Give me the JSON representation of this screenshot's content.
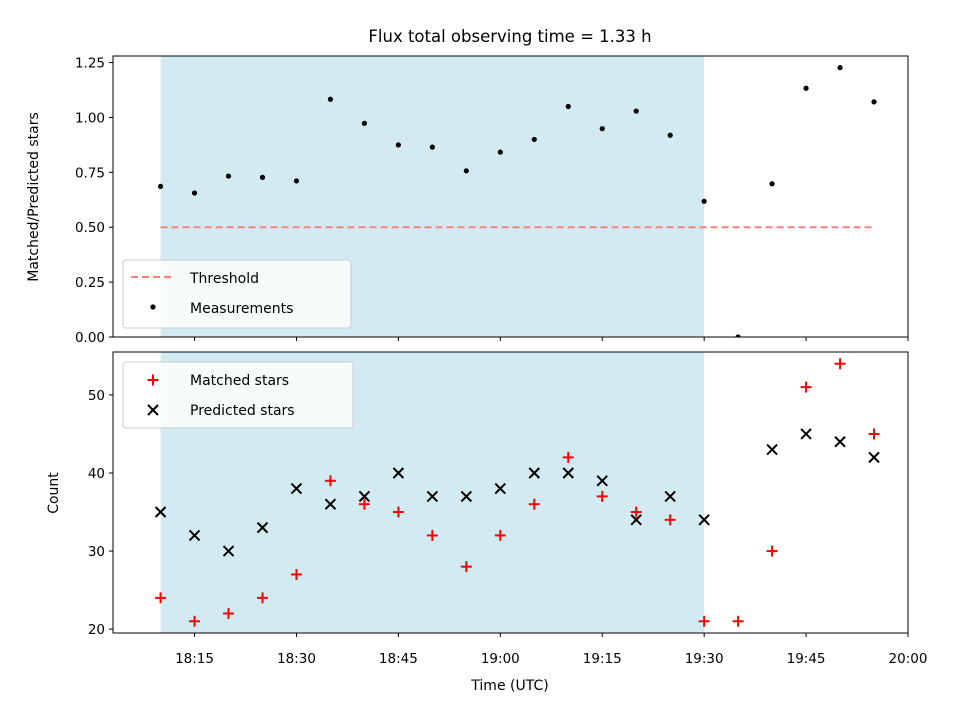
{
  "chart_data": {
    "title": "Flux total observing time = 1.33 h",
    "xlabel": "Time (UTC)",
    "x_ticks": [
      "18:15",
      "18:30",
      "18:45",
      "19:00",
      "19:15",
      "19:30",
      "19:45",
      "20:00"
    ],
    "x_tick_minutes": [
      1095,
      1110,
      1125,
      1140,
      1155,
      1170,
      1185,
      1200
    ],
    "xlim_minutes": [
      1083,
      1200
    ],
    "shaded_span_minutes": [
      1090,
      1170
    ],
    "times": [
      "18:10",
      "18:15",
      "18:20",
      "18:25",
      "18:30",
      "18:35",
      "18:40",
      "18:45",
      "18:50",
      "18:55",
      "19:00",
      "19:05",
      "19:10",
      "19:15",
      "19:20",
      "19:25",
      "19:30",
      "19:35",
      "19:40",
      "19:45",
      "19:50",
      "19:55"
    ],
    "times_minutes": [
      1090,
      1095,
      1100,
      1105,
      1110,
      1115,
      1120,
      1125,
      1130,
      1135,
      1140,
      1145,
      1150,
      1155,
      1160,
      1165,
      1170,
      1175,
      1180,
      1185,
      1190,
      1195
    ],
    "panels": [
      {
        "type": "scatter",
        "ylabel": "Matched/Predicted stars",
        "ylim": [
          0,
          1.28
        ],
        "y_ticks": [
          "0.00",
          "0.25",
          "0.50",
          "0.75",
          "1.00",
          "1.25"
        ],
        "y_tick_values": [
          0,
          0.25,
          0.5,
          0.75,
          1.0,
          1.25
        ],
        "legend_position": "lower-left",
        "threshold": {
          "name": "Threshold",
          "value": 0.5,
          "color": "#ff7f7f",
          "style": "dashed"
        },
        "series": [
          {
            "name": "Measurements",
            "color": "#000000",
            "marker": "dot",
            "values": [
              0.686,
              0.656,
              0.733,
              0.727,
              0.711,
              1.083,
              0.973,
              0.875,
              0.865,
              0.757,
              0.842,
              0.9,
              1.05,
              0.949,
              1.029,
              0.919,
              0.618,
              0.0,
              0.698,
              1.133,
              1.227,
              1.071
            ]
          }
        ]
      },
      {
        "type": "scatter",
        "ylabel": "Count",
        "ylim": [
          19.5,
          55.5
        ],
        "y_ticks": [
          "20",
          "30",
          "40",
          "50"
        ],
        "y_tick_values": [
          20,
          30,
          40,
          50
        ],
        "legend_position": "upper-left",
        "series": [
          {
            "name": "Matched stars",
            "color": "#ff0000",
            "marker": "plus",
            "values": [
              24,
              21,
              22,
              24,
              27,
              39,
              36,
              35,
              32,
              28,
              32,
              36,
              42,
              37,
              35,
              34,
              21,
              21,
              30,
              51,
              54,
              45
            ]
          },
          {
            "name": "Predicted stars",
            "color": "#000000",
            "marker": "x",
            "values": [
              35,
              32,
              30,
              33,
              38,
              36,
              37,
              40,
              37,
              37,
              38,
              40,
              40,
              39,
              34,
              37,
              34,
              null,
              43,
              45,
              44,
              42
            ]
          }
        ]
      }
    ],
    "colors": {
      "shade": "#add8e6",
      "threshold": "#ff7f7f",
      "matched": "#ff0000",
      "predicted": "#000000",
      "measurements": "#000000"
    }
  }
}
